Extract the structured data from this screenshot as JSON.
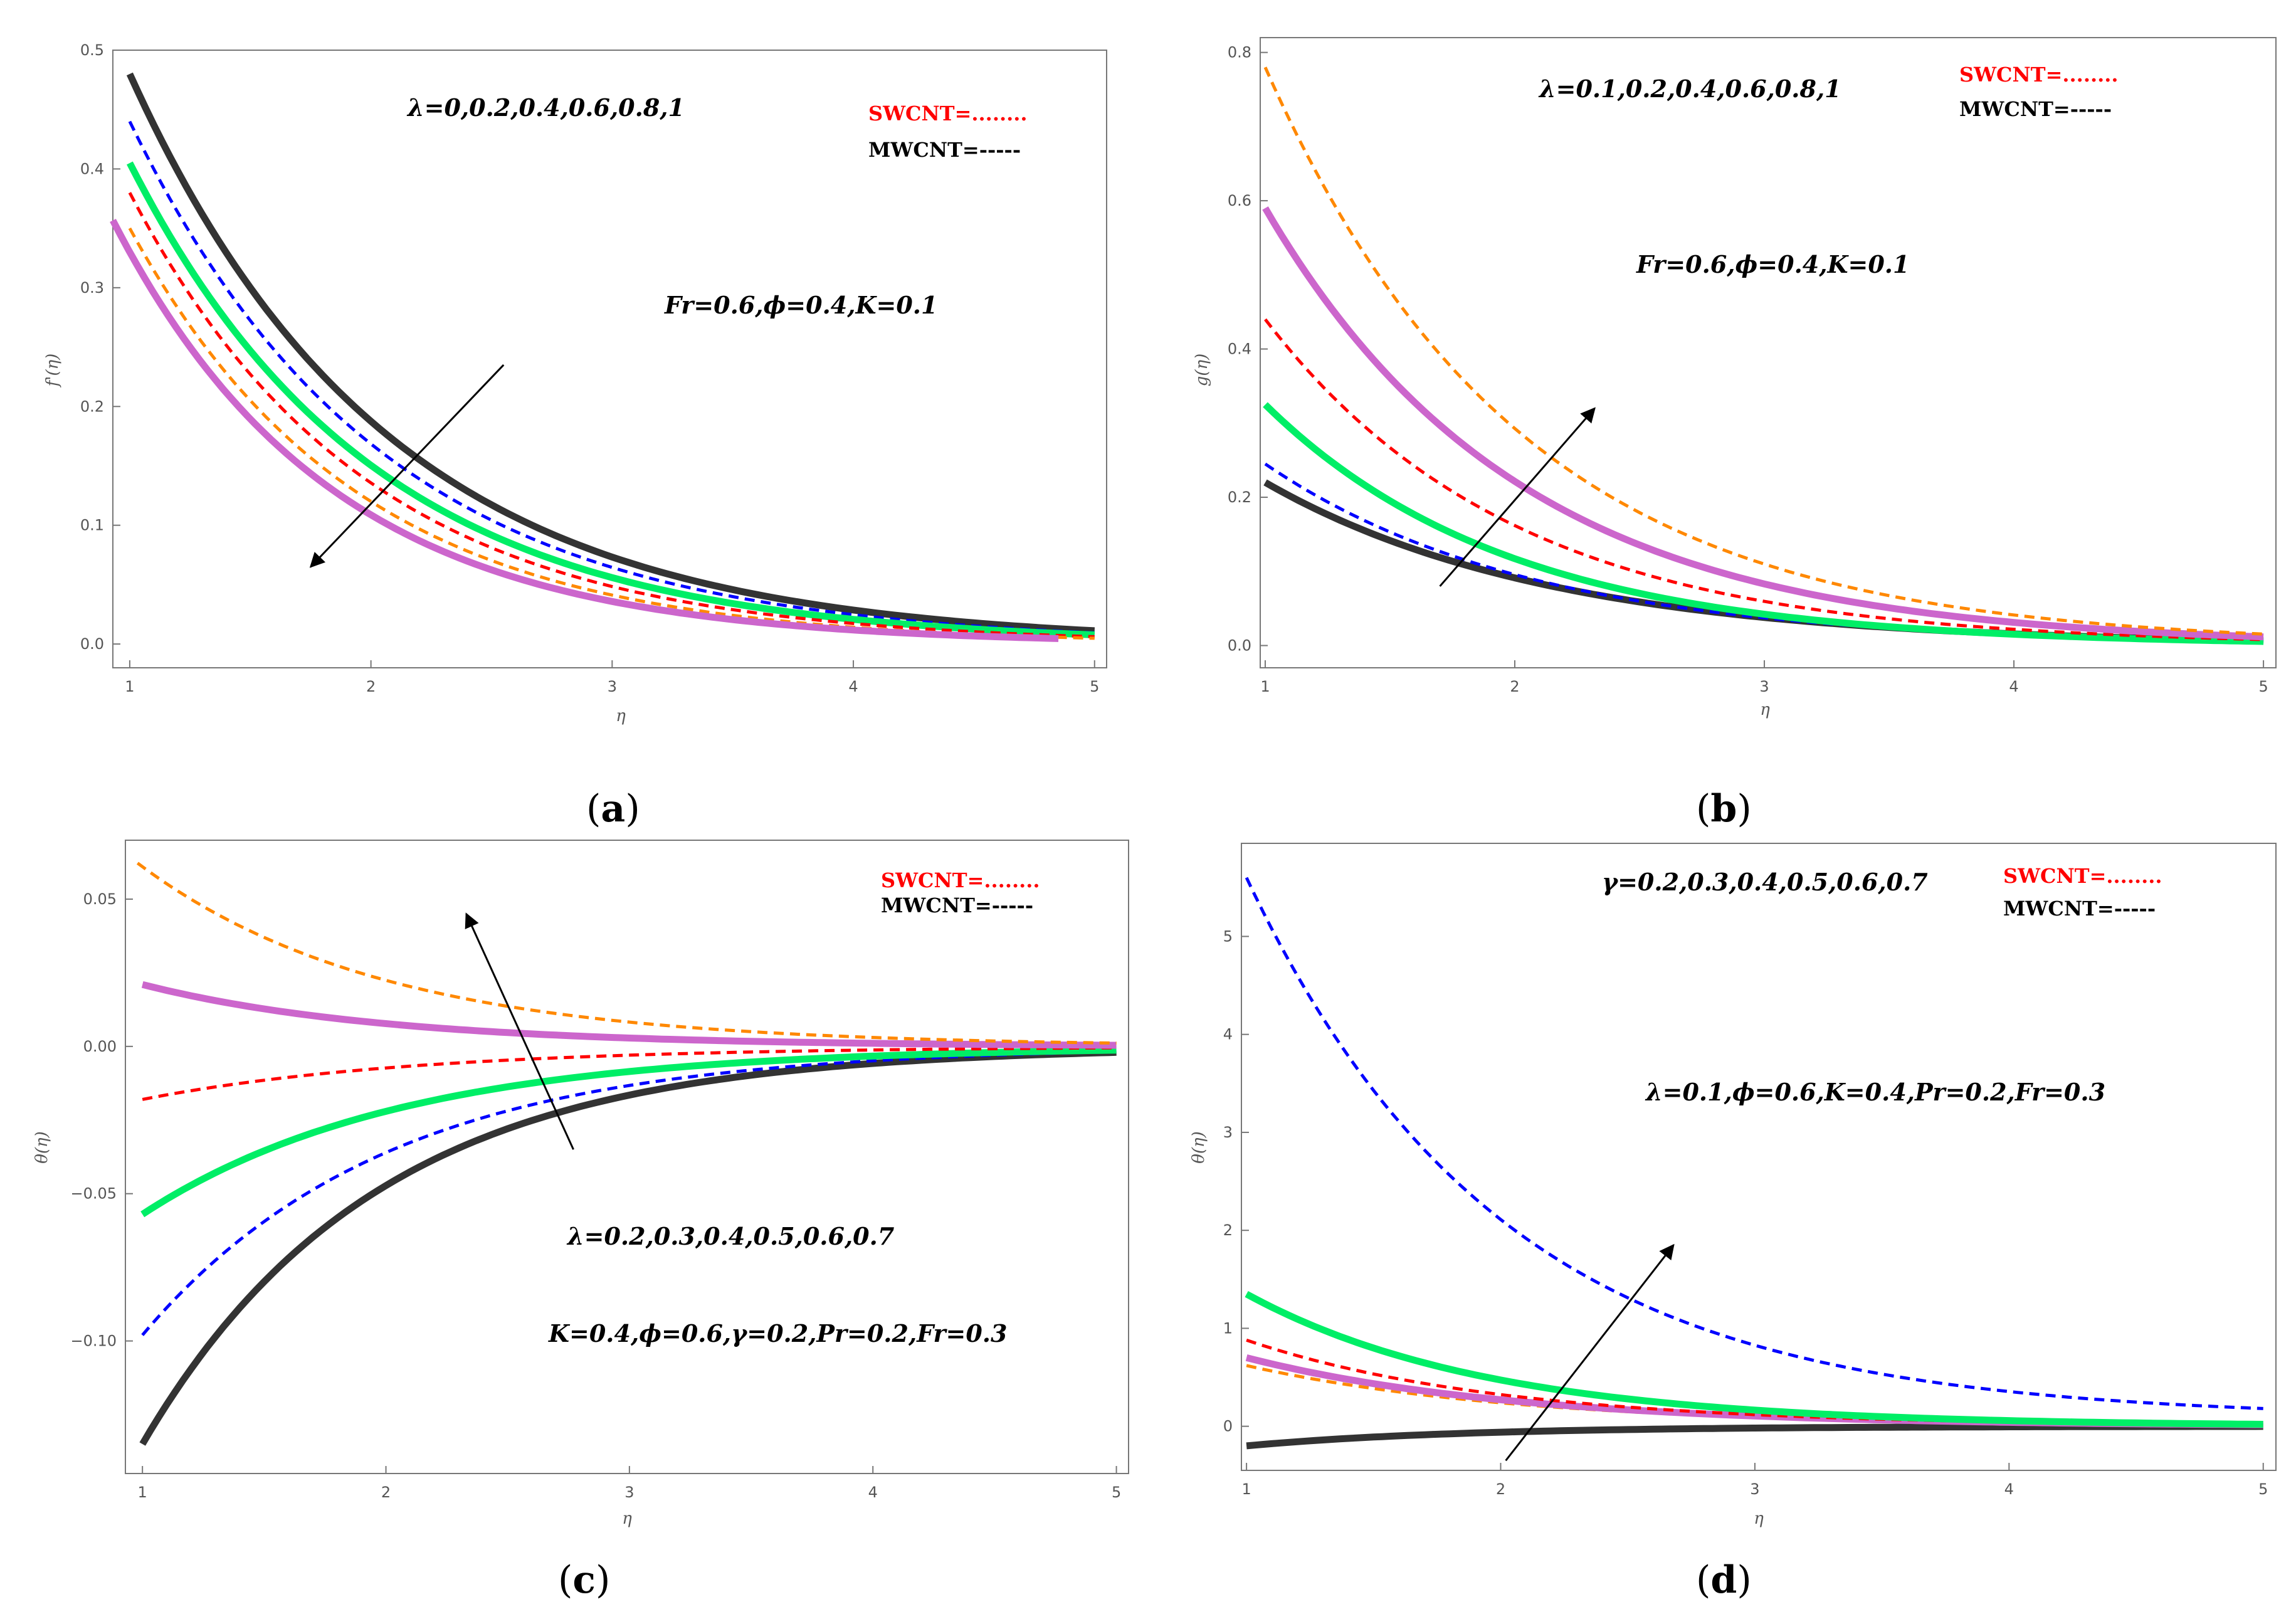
{
  "colors": {
    "black": "#333333",
    "blue": "#0000ff",
    "green": "#00ee66",
    "red": "#ff0000",
    "orange": "#ff8800",
    "purple": "#cc66cc",
    "frame": "#777777",
    "arrow": "#000000"
  },
  "chart_data": [
    {
      "type": "line",
      "panel": "a",
      "caption_letter": "a",
      "ylabel": "f'(η)",
      "xlabel": "η",
      "xlim": [
        0.93,
        5.05
      ],
      "ylim": [
        -0.02,
        0.5
      ],
      "xticks": [
        1,
        2,
        3,
        4,
        5
      ],
      "yticks": [
        0.0,
        0.1,
        0.2,
        0.3,
        0.4,
        0.5
      ],
      "ytick_labels": [
        "0.0",
        "0.1",
        "0.2",
        "0.3",
        "0.4",
        "0.5"
      ],
      "param_text": "λ=0,0.2,0.4,0.6,0.8,1",
      "fixed_text": "Fr=0.6,ϕ=0.4,K=0.1",
      "legend_sw": "SWCNT=........",
      "legend_mw": "MWCNT=-----",
      "arrow": {
        "from": [
          2.55,
          0.235
        ],
        "to": [
          1.75,
          0.065
        ]
      },
      "series": [
        {
          "name": "λ=0",
          "color": "black",
          "style": "solid",
          "x0": 1,
          "x1": 5,
          "a": 0.48,
          "k": 0.94,
          "c": 0.0
        },
        {
          "name": "λ=0.2",
          "color": "blue",
          "style": "dashed",
          "x0": 1,
          "x1": 5,
          "a": 0.44,
          "k": 0.96,
          "c": 0.0
        },
        {
          "name": "λ=0.4",
          "color": "green",
          "style": "solid",
          "x0": 1,
          "x1": 5,
          "a": 0.405,
          "k": 0.99,
          "c": 0.0
        },
        {
          "name": "λ=0.6",
          "color": "red",
          "style": "dashed",
          "x0": 1,
          "x1": 5,
          "a": 0.38,
          "k": 1.03,
          "c": 0.0
        },
        {
          "name": "λ=0.8",
          "color": "orange",
          "style": "dashed",
          "x0": 1,
          "x1": 5,
          "a": 0.35,
          "k": 1.07,
          "c": 0.0
        },
        {
          "name": "λ=1",
          "color": "purple",
          "style": "solid",
          "x0": 0.93,
          "x1": 4.85,
          "a": 0.33,
          "k": 1.11,
          "c": 0.0
        }
      ]
    },
    {
      "type": "line",
      "panel": "b",
      "caption_letter": "b",
      "ylabel": "g(η)",
      "xlabel": "η",
      "xlim": [
        0.98,
        5.05
      ],
      "ylim": [
        -0.03,
        0.82
      ],
      "xticks": [
        1,
        2,
        3,
        4,
        5
      ],
      "yticks": [
        0.0,
        0.2,
        0.4,
        0.6,
        0.8
      ],
      "ytick_labels": [
        "0.0",
        "0.2",
        "0.4",
        "0.6",
        "0.8"
      ],
      "param_text": "λ=0.1,0.2,0.4,0.6,0.8,1",
      "fixed_text": "Fr=0.6,ϕ=0.4,K=0.1",
      "legend_sw": "SWCNT=........",
      "legend_mw": "MWCNT=-----",
      "arrow": {
        "from": [
          1.7,
          0.08
        ],
        "to": [
          2.32,
          0.32
        ]
      },
      "series": [
        {
          "name": "λ=0.1",
          "color": "black",
          "style": "solid",
          "x0": 1,
          "x1": 5,
          "a": 0.22,
          "k": 0.88,
          "c": 0.0
        },
        {
          "name": "λ=0.2",
          "color": "blue",
          "style": "dashed",
          "x0": 1,
          "x1": 5,
          "a": 0.245,
          "k": 0.94,
          "c": 0.0
        },
        {
          "name": "λ=0.4",
          "color": "green",
          "style": "solid",
          "x0": 1,
          "x1": 5,
          "a": 0.325,
          "k": 1.02,
          "c": 0.0
        },
        {
          "name": "λ=0.6",
          "color": "red",
          "style": "dashed",
          "x0": 1,
          "x1": 5,
          "a": 0.44,
          "k": 1.0,
          "c": 0.0
        },
        {
          "name": "λ=0.8",
          "color": "purple",
          "style": "solid",
          "x0": 1,
          "x1": 5,
          "a": 0.59,
          "k": 0.98,
          "c": 0.0
        },
        {
          "name": "λ=1",
          "color": "orange",
          "style": "dashed",
          "x0": 1,
          "x1": 5,
          "a": 0.78,
          "k": 0.98,
          "c": 0.0
        }
      ]
    },
    {
      "type": "line",
      "panel": "c",
      "caption_letter": "c",
      "ylabel": "θ(η)",
      "xlabel": "η",
      "xlim": [
        0.93,
        5.05
      ],
      "ylim": [
        -0.145,
        0.07
      ],
      "xticks": [
        1,
        2,
        3,
        4,
        5
      ],
      "yticks": [
        -0.1,
        -0.05,
        0.0,
        0.05
      ],
      "ytick_labels": [
        "−0.10",
        "−0.05",
        "0.00",
        "0.05"
      ],
      "param_text": "λ=0.2,0.3,0.4,0.5,0.6,0.7",
      "fixed_text": "K=0.4,ϕ=0.6,γ=0.2,Pr=0.2,Fr=0.3",
      "legend_sw": "SWCNT=........",
      "legend_mw": "MWCNT=-----",
      "arrow": {
        "from": [
          2.77,
          -0.035
        ],
        "to": [
          2.33,
          0.045
        ]
      },
      "series": [
        {
          "name": "λ=0.2",
          "color": "black",
          "style": "solid",
          "x0": 1,
          "x1": 5,
          "a": -0.135,
          "k": 1.05,
          "c": 0.0
        },
        {
          "name": "λ=0.3",
          "color": "blue",
          "style": "dashed",
          "x0": 1,
          "x1": 5,
          "a": -0.098,
          "k": 1.0,
          "c": 0.0
        },
        {
          "name": "λ=0.4",
          "color": "green",
          "style": "solid",
          "x0": 1,
          "x1": 5,
          "a": -0.057,
          "k": 0.95,
          "c": 0.0
        },
        {
          "name": "λ=0.5",
          "color": "red",
          "style": "dashed",
          "x0": 1,
          "x1": 5,
          "a": -0.018,
          "k": 0.9,
          "c": 0.0
        },
        {
          "name": "λ=0.6",
          "color": "purple",
          "style": "solid",
          "x0": 1,
          "x1": 5,
          "a": 0.021,
          "k": 1.0,
          "c": 0.0
        },
        {
          "name": "λ=0.7",
          "color": "orange",
          "style": "dashed",
          "x0": 0.98,
          "x1": 5,
          "a": 0.061,
          "k": 1.0,
          "c": 0.0
        }
      ]
    },
    {
      "type": "line",
      "panel": "d",
      "caption_letter": "d",
      "ylabel": "θ(η)",
      "xlabel": "η",
      "xlim": [
        0.98,
        5.05
      ],
      "ylim": [
        -0.45,
        5.95
      ],
      "xticks": [
        1,
        2,
        3,
        4,
        5
      ],
      "yticks": [
        0,
        1,
        2,
        3,
        4,
        5
      ],
      "ytick_labels": [
        "0",
        "1",
        "2",
        "3",
        "4",
        "5"
      ],
      "param_text": "γ=0.2,0.3,0.4,0.5,0.6,0.7",
      "fixed_text": "λ=0.1,ϕ=0.6,K=0.4,Pr=0.2,Fr=0.3",
      "legend_sw": "SWCNT=........",
      "legend_mw": "MWCNT=-----",
      "arrow": {
        "from": [
          2.02,
          -0.35
        ],
        "to": [
          2.68,
          1.85
        ]
      },
      "series": [
        {
          "name": "γ=0.2",
          "color": "black",
          "style": "solid",
          "x0": 1,
          "x1": 5,
          "a": -0.2,
          "k": 1.2,
          "c": 0.0
        },
        {
          "name": "γ=0.3",
          "color": "orange",
          "style": "dashed",
          "x0": 1,
          "x1": 5,
          "a": 0.62,
          "k": 0.95,
          "c": 0.0
        },
        {
          "name": "γ=0.4",
          "color": "purple",
          "style": "solid",
          "x0": 1,
          "x1": 5,
          "a": 0.7,
          "k": 0.95,
          "c": 0.0
        },
        {
          "name": "γ=0.5",
          "color": "red",
          "style": "dashed",
          "x0": 1,
          "x1": 5,
          "a": 0.88,
          "k": 1.0,
          "c": 0.0
        },
        {
          "name": "γ=0.6",
          "color": "green",
          "style": "solid",
          "x0": 1,
          "x1": 5,
          "a": 1.35,
          "k": 1.05,
          "c": 0.0
        },
        {
          "name": "γ=0.7",
          "color": "blue",
          "style": "dashed",
          "x0": 1,
          "x1": 5,
          "a": 5.6,
          "k": 1.0,
          "c": 0.08
        }
      ]
    }
  ]
}
